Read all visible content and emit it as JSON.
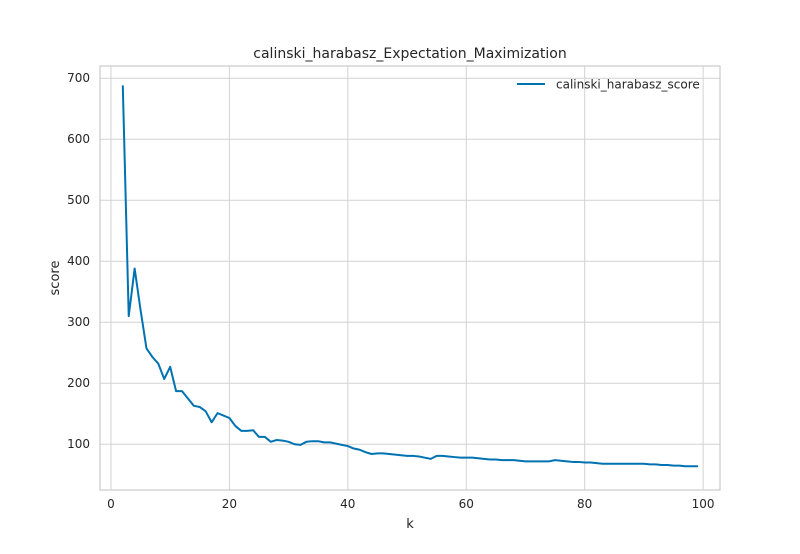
{
  "chart_data": {
    "type": "line",
    "title": "calinski_harabasz_Expectation_Maximization",
    "xlabel": "k",
    "ylabel": "score",
    "xlim": [
      -1.85,
      102.85
    ],
    "ylim": [
      25,
      720
    ],
    "xticks": [
      0,
      20,
      40,
      60,
      80,
      100
    ],
    "yticks": [
      100,
      200,
      300,
      400,
      500,
      600,
      700
    ],
    "grid": true,
    "legend_position": "top-right",
    "colors": {
      "line": "#0072b2",
      "grid": "#d2d2d2",
      "axes_edge": "#cccccc",
      "text": "#262626"
    },
    "series": [
      {
        "name": "calinski_harabasz_score",
        "x": [
          2,
          3,
          4,
          5,
          6,
          7,
          8,
          9,
          10,
          11,
          12,
          13,
          14,
          15,
          16,
          17,
          18,
          19,
          20,
          21,
          22,
          23,
          24,
          25,
          26,
          27,
          28,
          29,
          30,
          31,
          32,
          33,
          34,
          35,
          36,
          37,
          38,
          39,
          40,
          41,
          42,
          43,
          44,
          45,
          46,
          47,
          48,
          49,
          50,
          51,
          52,
          53,
          54,
          55,
          56,
          57,
          58,
          59,
          60,
          61,
          62,
          63,
          64,
          65,
          66,
          67,
          68,
          69,
          70,
          71,
          72,
          73,
          74,
          75,
          76,
          77,
          78,
          79,
          80,
          81,
          82,
          83,
          84,
          85,
          86,
          87,
          88,
          89,
          90,
          91,
          92,
          93,
          94,
          95,
          96,
          97,
          98,
          99
        ],
        "y": [
          687,
          310,
          388,
          320,
          257,
          243,
          232,
          207,
          227,
          187,
          187,
          175,
          163,
          161,
          154,
          136,
          151,
          147,
          143,
          130,
          122,
          122,
          123,
          112,
          112,
          104,
          107,
          106,
          104,
          100,
          99,
          104,
          105,
          105,
          103,
          103,
          101,
          99,
          97,
          93,
          91,
          87,
          84,
          85,
          85,
          84,
          83,
          82,
          81,
          81,
          80,
          78,
          76,
          81,
          81,
          80,
          79,
          78,
          78,
          78,
          77,
          76,
          75,
          75,
          74,
          74,
          74,
          73,
          72,
          72,
          72,
          72,
          72,
          74,
          73,
          72,
          71,
          71,
          70,
          70,
          69,
          68,
          68,
          68,
          68,
          68,
          68,
          68,
          68,
          67,
          67,
          66,
          66,
          65,
          65,
          64,
          64,
          64
        ]
      }
    ]
  }
}
